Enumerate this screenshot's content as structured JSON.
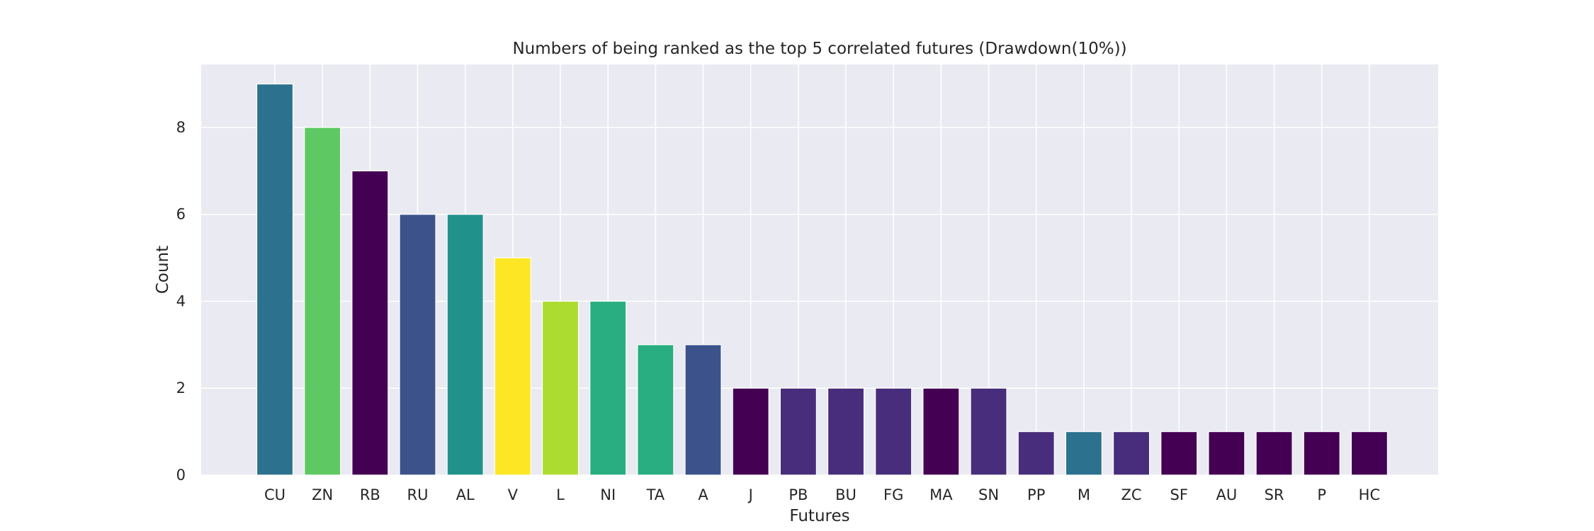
{
  "chart_data": {
    "type": "bar",
    "title": "Numbers of being ranked as the top 5 correlated futures (Drawdown(10%))",
    "xlabel": "Futures",
    "ylabel": "Count",
    "categories": [
      "CU",
      "ZN",
      "RB",
      "RU",
      "AL",
      "V",
      "L",
      "NI",
      "TA",
      "A",
      "J",
      "PB",
      "BU",
      "FG",
      "MA",
      "SN",
      "PP",
      "M",
      "ZC",
      "SF",
      "AU",
      "SR",
      "P",
      "HC"
    ],
    "values": [
      9,
      8,
      7,
      6,
      6,
      5,
      4,
      4,
      3,
      3,
      2,
      2,
      2,
      2,
      2,
      2,
      1,
      1,
      1,
      1,
      1,
      1,
      1,
      1
    ],
    "colors": [
      "#2c728e",
      "#5ec962",
      "#440154",
      "#3b528b",
      "#21918c",
      "#fde725",
      "#addc30",
      "#28ae80",
      "#28ae80",
      "#3b528b",
      "#440154",
      "#472d7b",
      "#472d7b",
      "#472d7b",
      "#440154",
      "#472d7b",
      "#472d7b",
      "#2c728e",
      "#472d7b",
      "#440154",
      "#440154",
      "#440154",
      "#440154",
      "#440154"
    ],
    "yticks": [
      0,
      2,
      4,
      6,
      8
    ],
    "ylim": [
      0,
      9.45
    ],
    "grid": true,
    "background": "#eaeaf2",
    "grid_color": "#ffffff"
  }
}
